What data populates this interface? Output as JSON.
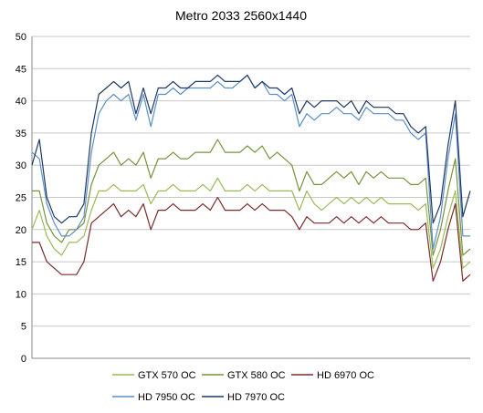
{
  "chart_data": {
    "type": "line",
    "title": "Metro 2033 2560x1440",
    "xlabel": "",
    "ylabel": "",
    "ylim": [
      0,
      50
    ],
    "yticks": [
      0,
      5,
      10,
      15,
      20,
      25,
      30,
      35,
      40,
      45,
      50
    ],
    "grid": true,
    "legend_position": "bottom",
    "x": [
      0,
      8,
      16,
      24,
      32,
      40,
      48,
      56,
      64,
      72,
      80,
      88,
      96,
      104,
      112,
      120,
      128,
      136,
      144,
      152,
      160,
      168,
      176,
      184,
      192,
      200,
      208,
      216,
      224,
      232,
      240,
      248,
      256,
      264,
      272,
      280,
      288,
      296,
      304,
      312,
      320,
      328,
      336,
      344,
      352,
      360,
      368,
      376,
      384,
      392,
      400,
      408,
      416,
      424,
      432,
      440,
      448,
      456,
      464,
      472
    ],
    "series": [
      {
        "name": "GTX 570 OC",
        "color": "#9bbb59",
        "values": [
          20,
          23,
          19,
          17,
          16,
          18,
          18,
          19,
          23,
          26,
          26,
          27,
          26,
          26,
          26,
          27,
          24,
          26,
          26,
          27,
          26,
          26,
          26,
          27,
          26,
          28,
          26,
          26,
          26,
          27,
          26,
          27,
          26,
          26,
          26,
          26,
          23,
          26,
          24,
          23,
          24,
          25,
          24,
          25,
          24,
          25,
          24,
          25,
          24,
          24,
          24,
          24,
          23,
          24,
          14,
          17,
          22,
          26,
          14,
          15
        ]
      },
      {
        "name": "GTX 580 OC",
        "color": "#77933c",
        "values": [
          26,
          26,
          21,
          19,
          18,
          20,
          20,
          21,
          27,
          30,
          31,
          32,
          30,
          31,
          30,
          32,
          28,
          31,
          31,
          32,
          31,
          31,
          32,
          32,
          32,
          34,
          32,
          32,
          32,
          33,
          32,
          33,
          31,
          32,
          31,
          30,
          26,
          29,
          27,
          27,
          28,
          29,
          28,
          29,
          27,
          29,
          28,
          29,
          28,
          28,
          28,
          27,
          27,
          28,
          16,
          20,
          26,
          31,
          16,
          17
        ]
      },
      {
        "name": "HD 6970 OC",
        "color": "#7b2c2c",
        "values": [
          18,
          18,
          15,
          14,
          13,
          13,
          13,
          15,
          21,
          22,
          23,
          24,
          22,
          23,
          22,
          24,
          20,
          23,
          23,
          24,
          23,
          23,
          23,
          24,
          23,
          25,
          23,
          23,
          23,
          24,
          23,
          24,
          23,
          23,
          23,
          22,
          20,
          22,
          21,
          21,
          21,
          22,
          21,
          22,
          21,
          22,
          21,
          22,
          21,
          21,
          21,
          20,
          20,
          21,
          12,
          15,
          20,
          24,
          12,
          13
        ]
      },
      {
        "name": "HD 7950 OC",
        "color": "#5b8fc7",
        "values": [
          32,
          31,
          24,
          21,
          19,
          19,
          20,
          22,
          32,
          38,
          40,
          41,
          40,
          41,
          37,
          41,
          36,
          41,
          41,
          42,
          41,
          42,
          42,
          42,
          42,
          43,
          42,
          42,
          43,
          44,
          42,
          43,
          41,
          41,
          40,
          41,
          36,
          38,
          37,
          38,
          38,
          39,
          38,
          38,
          37,
          39,
          38,
          38,
          38,
          37,
          37,
          35,
          34,
          35,
          17,
          22,
          31,
          38,
          19,
          19
        ]
      },
      {
        "name": "HD 7970 OC",
        "color": "#1f3864",
        "values": [
          30,
          34,
          25,
          22,
          21,
          22,
          22,
          24,
          35,
          41,
          42,
          43,
          42,
          43,
          38,
          42,
          38,
          42,
          42,
          43,
          42,
          42,
          43,
          43,
          43,
          44,
          43,
          43,
          43,
          44,
          42,
          43,
          42,
          42,
          41,
          42,
          38,
          40,
          39,
          40,
          40,
          40,
          39,
          40,
          38,
          40,
          39,
          39,
          39,
          38,
          38,
          36,
          35,
          36,
          21,
          24,
          33,
          40,
          22,
          26
        ]
      }
    ]
  }
}
